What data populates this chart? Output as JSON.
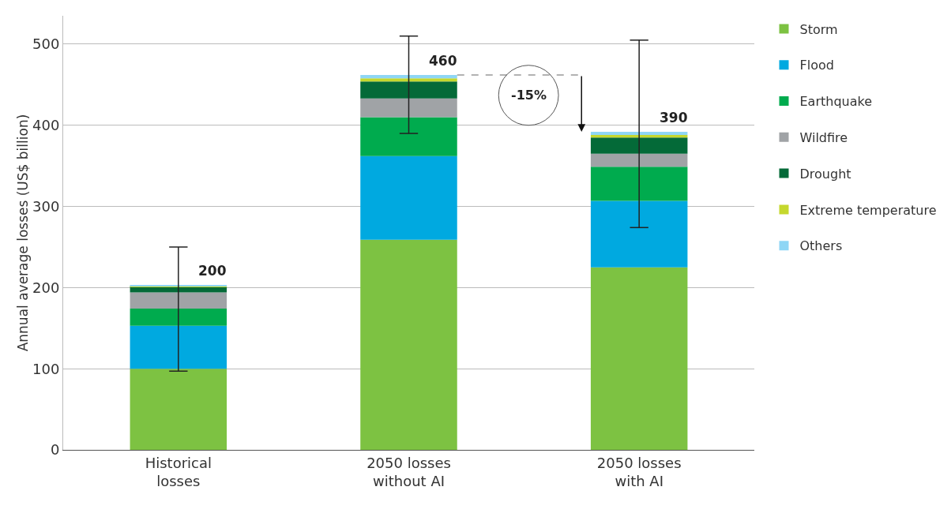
{
  "chart_data": {
    "type": "bar",
    "stacked": true,
    "ylabel": "Annual average losses (US$ billion)",
    "categories": [
      "Historical losses",
      "2050 losses without AI",
      "2050 losses with AI"
    ],
    "series": [
      {
        "name": "Storm",
        "color": "#7dc242",
        "values": [
          100,
          259,
          225
        ]
      },
      {
        "name": "Flood",
        "color": "#00a9e0",
        "values": [
          53,
          103,
          82
        ]
      },
      {
        "name": "Earthquake",
        "color": "#00ab4e",
        "values": [
          21,
          48,
          42
        ]
      },
      {
        "name": "Wildfire",
        "color": "#a0a3a6",
        "values": [
          20,
          23,
          16
        ]
      },
      {
        "name": "Drought",
        "color": "#046a38",
        "values": [
          7,
          21,
          20
        ]
      },
      {
        "name": "Extreme temperature",
        "color": "#c5d82e",
        "values": [
          1,
          4,
          3
        ]
      },
      {
        "name": "Others",
        "color": "#8fd6f5",
        "values": [
          1,
          4,
          4
        ],
        "errors": [
          [
            97,
            250
          ],
          [
            390,
            510
          ],
          [
            274,
            505
          ]
        ]
      }
    ],
    "totals": [
      "200",
      "460",
      "390"
    ],
    "annotations": [
      "-15%"
    ],
    "ylim": [
      0,
      535
    ],
    "yticks": [
      0,
      100,
      200,
      300,
      400,
      500
    ],
    "grid": "y",
    "legend": "right"
  }
}
